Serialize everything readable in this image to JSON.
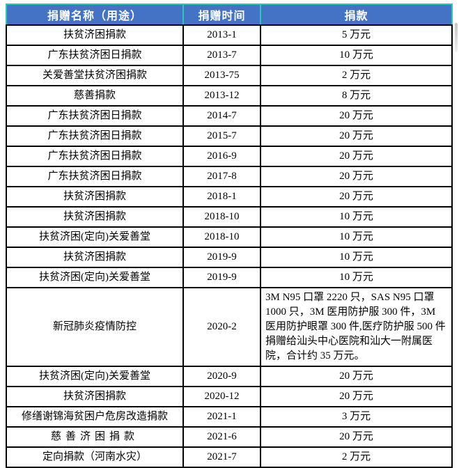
{
  "table": {
    "columns": [
      {
        "key": "name",
        "label": "捐赠名称（用途）"
      },
      {
        "key": "time",
        "label": "捐赠时间"
      },
      {
        "key": "amount",
        "label": "捐款"
      }
    ],
    "rows": [
      {
        "name": "扶贫济困捐款",
        "time": "2013-1",
        "amount": "5 万元"
      },
      {
        "name": "广东扶贫济困日捐款",
        "time": "2013-7",
        "amount": "10 万元"
      },
      {
        "name": "关爱善堂扶贫济困捐款",
        "time": "2013-75",
        "amount": "2 万元"
      },
      {
        "name": "慈善捐款",
        "time": "2013-12",
        "amount": "8 万元"
      },
      {
        "name": "广东扶贫济困日捐款",
        "time": "2014-7",
        "amount": "20 万元"
      },
      {
        "name": "广东扶贫济困日捐款",
        "time": "2015-7",
        "amount": "20 万元"
      },
      {
        "name": "广东扶贫济困日捐款",
        "time": "2016-9",
        "amount": "20 万元"
      },
      {
        "name": "广东扶贫济困日捐款",
        "time": "2017-8",
        "amount": "20 万元"
      },
      {
        "name": "扶贫济困捐款",
        "time": "2018-1",
        "amount": "20 万元"
      },
      {
        "name": "扶贫济困捐款",
        "time": "2018-10",
        "amount": "10 万元"
      },
      {
        "name": "扶贫济困(定向)关爱善堂",
        "time": "2018-10",
        "amount": "10 万元"
      },
      {
        "name": "扶贫济困捐款",
        "time": "2019-9",
        "amount": "10 万元"
      },
      {
        "name": "扶贫济困(定向)关爱善堂",
        "time": "2019-9",
        "amount": "10 万元"
      },
      {
        "name": "新冠肺炎疫情防控",
        "time": "2020-2",
        "amount": "3M N95 口罩 2220 只，SAS N95 口罩 1000 只，3M 医用防护服 300 件，3M 医用防护眼罩 300 件,医疗防护服 500 件捐赠给汕头中心医院和汕大一附属医院，合计约 35 万元。",
        "amount_align": "left"
      },
      {
        "name": "扶贫济困(定向)关爱善堂",
        "time": "2020-9",
        "amount": "20 万元"
      },
      {
        "name": "扶贫济困捐款",
        "time": "2020-12",
        "amount": "20 万元"
      },
      {
        "name": "修缮谢锦海贫困户危房改造捐款",
        "time": "2021-1",
        "amount": "3 万元"
      },
      {
        "name": "慈善济困捐款",
        "time": "2021-6",
        "amount": "20 万元",
        "name_spaced": true
      },
      {
        "name": "定向捐款（河南水灾）",
        "time": "2021-7",
        "amount": "2 万元"
      }
    ]
  },
  "colors": {
    "header_bg": "#4472c4",
    "header_outline": "#2cc8b4",
    "grid_border": "#000000",
    "header_text": "#ffffff",
    "body_text": "#000000"
  }
}
